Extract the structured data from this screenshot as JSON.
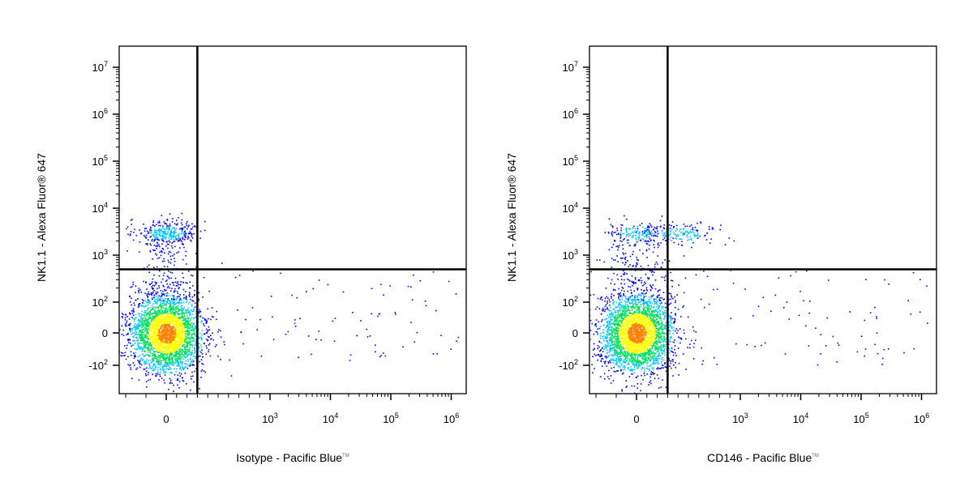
{
  "chart_data": [
    {
      "type": "scatter",
      "subtype": "flow-cytometry-pseudocolor-density",
      "xlabel": "Isotype - Pacific Blue",
      "xlabel_tm": "TM",
      "ylabel": "NK1.1 - Alexa Fluor® 647",
      "x_scale": "biexponential",
      "y_scale": "biexponential",
      "x_ticks": [
        "0",
        "10^3",
        "10^4",
        "10^5",
        "10^6"
      ],
      "y_ticks": [
        "-10^2",
        "0",
        "10^2",
        "10^3",
        "10^4",
        "10^5",
        "10^6",
        "10^7"
      ],
      "gate": {
        "x": 300,
        "y": 500
      },
      "populations": [
        {
          "name": "",
          "x_center": 0,
          "y_center": 0,
          "fraction": 0.74
        },
        {
          "name": "",
          "x_center": 0,
          "y_center": 3000,
          "fraction": 0.08
        }
      ],
      "colormap": [
        "#0000ff",
        "#00c8ff",
        "#00e060",
        "#ffff00",
        "#ff8000",
        "#ff0000"
      ]
    },
    {
      "type": "scatter",
      "subtype": "flow-cytometry-pseudocolor-density",
      "xlabel": "CD146 - Pacific Blue",
      "xlabel_tm": "TM",
      "ylabel": "NK1.1 - Alexa Fluor® 647",
      "x_scale": "biexponential",
      "y_scale": "biexponential",
      "x_ticks": [
        "0",
        "10^3",
        "10^4",
        "10^5",
        "10^6"
      ],
      "y_ticks": [
        "-10^2",
        "0",
        "10^2",
        "10^3",
        "10^4",
        "10^5",
        "10^6",
        "10^7"
      ],
      "gate": {
        "x": 300,
        "y": 500
      },
      "populations": [
        {
          "name": "",
          "x_center": 0,
          "y_center": 0,
          "fraction": 0.74
        },
        {
          "name": "",
          "x_center": 0,
          "y_center": 3000,
          "fraction": 0.04
        },
        {
          "name": "",
          "x_center": 400,
          "y_center": 2800,
          "fraction": 0.04
        }
      ],
      "colormap": [
        "#0000ff",
        "#00c8ff",
        "#00e060",
        "#ffff00",
        "#ff8000",
        "#ff0000"
      ]
    }
  ]
}
